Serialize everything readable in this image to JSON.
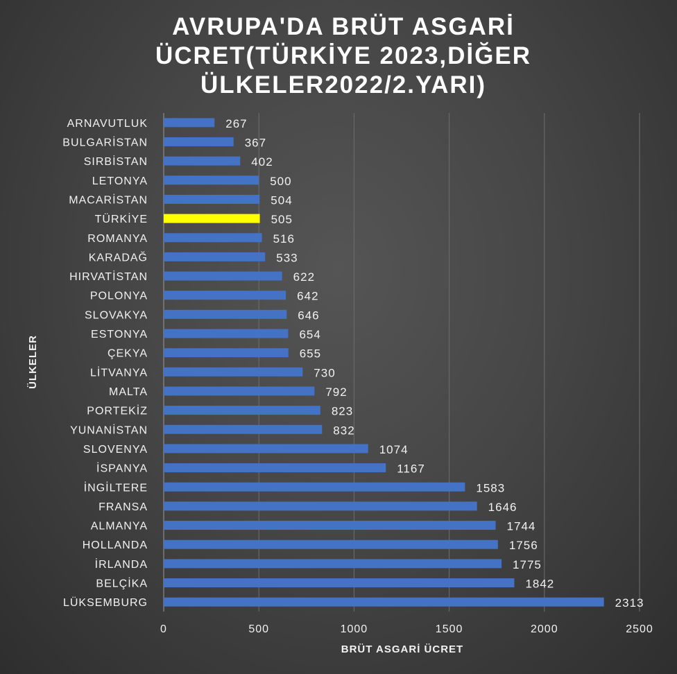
{
  "colors": {
    "bar": "#4472c4",
    "highlight": "#ffff00",
    "grid": "#6e6e6e",
    "axis": "#9a9a9a",
    "text": "#f2f2f2"
  },
  "chart_data": {
    "type": "bar",
    "orientation": "horizontal",
    "title": "AVRUPA'DA BRÜT ASGARİ\nÜCRET(TÜRKİYE  2023,DİĞER\nÜLKELER2022/2.YARI)",
    "xlabel": "BRÜT ASGARİ ÜCRET",
    "ylabel": "ÜLKELER",
    "xlim": [
      0,
      2500
    ],
    "xticks": [
      0,
      500,
      1000,
      1500,
      2000,
      2500
    ],
    "grid": true,
    "legend": "none",
    "highlight_category": "TÜRKİYE",
    "categories": [
      "ARNAVUTLUK",
      "BULGARİSTAN",
      "SIRBİSTAN",
      "LETONYA",
      "MACARİSTAN",
      "TÜRKİYE",
      "ROMANYA",
      "KARADAĞ",
      "HIRVATİSTAN",
      "POLONYA",
      "SLOVAKYA",
      "ESTONYA",
      "ÇEKYA",
      "LİTVANYA",
      "MALTA",
      "PORTEKİZ",
      "YUNANİSTAN",
      "SLOVENYA",
      "İSPANYA",
      "İNGİLTERE",
      "FRANSA",
      "ALMANYA",
      "HOLLANDA",
      "İRLANDA",
      "BELÇİKA",
      "LÜKSEMBURG"
    ],
    "values": [
      267,
      367,
      402,
      500,
      504,
      505,
      516,
      533,
      622,
      642,
      646,
      654,
      655,
      730,
      792,
      823,
      832,
      1074,
      1167,
      1583,
      1646,
      1744,
      1756,
      1775,
      1842,
      2313
    ]
  }
}
